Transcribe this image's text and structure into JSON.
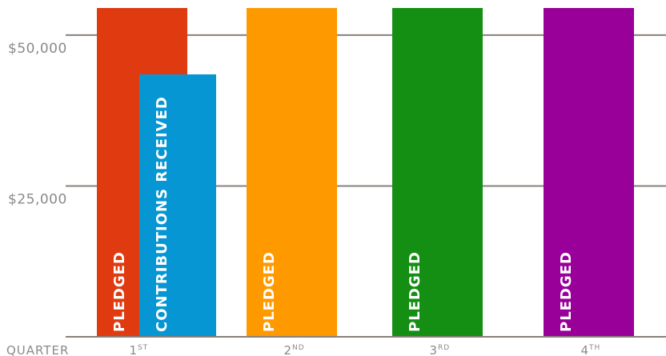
{
  "chart_data": {
    "type": "bar",
    "x_axis_title": "QUARTER",
    "categories": [
      {
        "num": "1",
        "suffix": "ST"
      },
      {
        "num": "2",
        "suffix": "ND"
      },
      {
        "num": "3",
        "suffix": "RD"
      },
      {
        "num": "4",
        "suffix": "TH"
      }
    ],
    "y_ticks": [
      {
        "value": 25000,
        "label": "$25,000"
      },
      {
        "value": 50000,
        "label": "$50,000"
      }
    ],
    "ylim": [
      0,
      54500
    ],
    "series": [
      {
        "name": "PLEDGED",
        "values": [
          55000,
          55000,
          55000,
          55000
        ],
        "colors": [
          "#e03a10",
          "#ff9900",
          "#148f14",
          "#990099"
        ]
      },
      {
        "name": "CONTRIBUTIONS RECEIVED",
        "values": [
          43500,
          null,
          null,
          null
        ],
        "colors": [
          "#0796d4",
          null,
          null,
          null
        ]
      }
    ],
    "grid": true,
    "legend": "none (labels drawn inside bars)"
  }
}
